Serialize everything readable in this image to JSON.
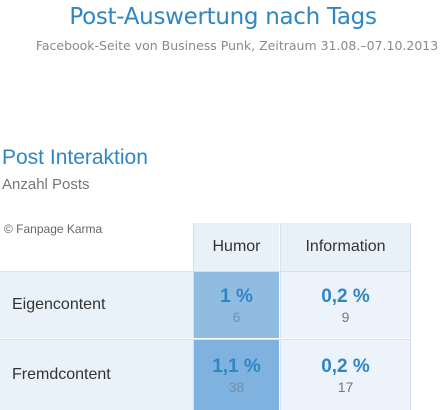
{
  "header": {
    "title": "Post-Auswertung nach Tags",
    "subtitle": "Facebook-Seite von Business Punk, Zeitraum 31.08.–07.10.2013"
  },
  "section": {
    "title": "Post Interaktion",
    "subtitle": "Anzahl Posts",
    "credit": "© Fanpage Karma"
  },
  "chart_data": {
    "type": "heatmap",
    "columns": [
      "Humor",
      "Information"
    ],
    "rows": [
      "Eigencontent",
      "Fremdcontent"
    ],
    "cells": [
      [
        {
          "percent": "1 %",
          "count": "6"
        },
        {
          "percent": "0,2 %",
          "count": "9"
        }
      ],
      [
        {
          "percent": "1,1 %",
          "count": "38"
        },
        {
          "percent": "0,2 %",
          "count": "17"
        }
      ]
    ],
    "values": [
      [
        1.0,
        0.2
      ],
      [
        1.1,
        0.2
      ]
    ],
    "color_scale": {
      "low": "#f4f8fc",
      "high": "#7fb2de"
    }
  }
}
